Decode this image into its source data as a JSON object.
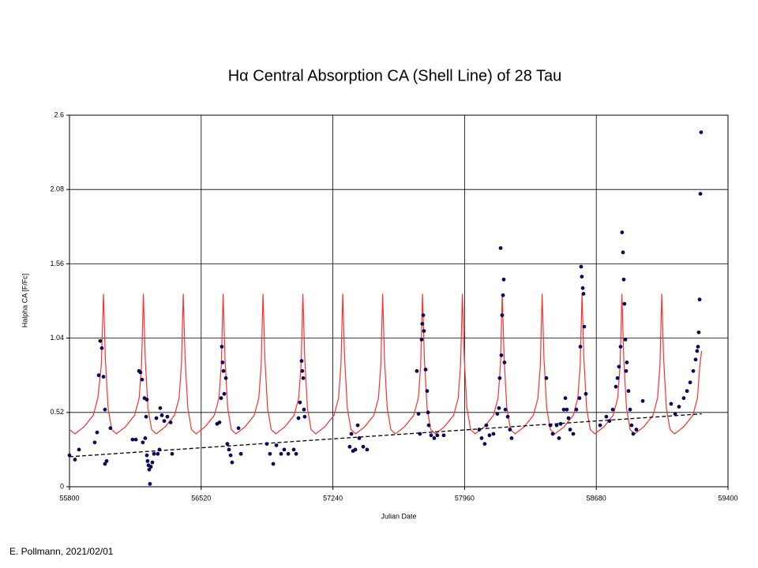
{
  "chart_data": {
    "type": "scatter",
    "title": "Hα Central Absorption CA (Shell Line) of 28 Tau",
    "x_label": "Julian Date",
    "y_label": "Halpha CA [F/Fc]",
    "footer": "E. Pollmann, 2021/02/01",
    "xlim": [
      55800,
      59400
    ],
    "xticks": [
      55800,
      56520,
      57240,
      57960,
      58680,
      59400
    ],
    "ylim": [
      0,
      2.6
    ],
    "yticks": [
      0,
      0.52,
      1.04,
      1.56,
      2.08,
      2.6
    ],
    "grid": true,
    "series": [
      {
        "style": "line",
        "color": "#ff3030",
        "x": [
          55800,
          55830,
          55880,
          55930,
          55955,
          55974,
          55986,
          55996,
          56011,
          56031,
          56056,
          56106,
          56156,
          56181,
          56194,
          56204,
          56214,
          56229,
          56249,
          56274,
          56324,
          56374,
          56399,
          56412,
          56422,
          56432,
          56447,
          56467,
          56492,
          56542,
          56592,
          56617,
          56630,
          56640,
          56650,
          56665,
          56685,
          56710,
          56760,
          56810,
          56835,
          56848,
          56858,
          56868,
          56883,
          56903,
          56928,
          56978,
          57028,
          57053,
          57066,
          57076,
          57086,
          57101,
          57121,
          57146,
          57196,
          57246,
          57271,
          57284,
          57294,
          57304,
          57319,
          57339,
          57364,
          57414,
          57464,
          57489,
          57502,
          57512,
          57522,
          57537,
          57557,
          57582,
          57632,
          57682,
          57707,
          57720,
          57730,
          57740,
          57755,
          57775,
          57800,
          57850,
          57900,
          57925,
          57938,
          57948,
          57958,
          57973,
          57993,
          58018,
          58068,
          58118,
          58143,
          58156,
          58166,
          58176,
          58191,
          58211,
          58236,
          58286,
          58336,
          58361,
          58374,
          58384,
          58394,
          58409,
          58429,
          58454,
          58504,
          58554,
          58579,
          58592,
          58602,
          58612,
          58627,
          58647,
          58672,
          58722,
          58772,
          58797,
          58810,
          58820,
          58830,
          58845,
          58865,
          58890,
          58940,
          58990,
          59015,
          59028,
          59038,
          59048,
          59063,
          59083,
          59108,
          59158,
          59208,
          59233,
          59246,
          59256
        ],
        "values": [
          0.4,
          0.37,
          0.42,
          0.5,
          0.62,
          0.85,
          1.35,
          0.9,
          0.55,
          0.4,
          0.37,
          0.42,
          0.5,
          0.62,
          0.85,
          1.35,
          0.9,
          0.55,
          0.4,
          0.37,
          0.42,
          0.5,
          0.62,
          0.85,
          1.35,
          0.9,
          0.55,
          0.4,
          0.37,
          0.42,
          0.5,
          0.62,
          0.85,
          1.35,
          0.9,
          0.55,
          0.4,
          0.37,
          0.42,
          0.5,
          0.62,
          0.85,
          1.35,
          0.9,
          0.55,
          0.4,
          0.37,
          0.42,
          0.5,
          0.62,
          0.85,
          1.35,
          0.9,
          0.55,
          0.4,
          0.37,
          0.42,
          0.5,
          0.62,
          0.85,
          1.35,
          0.9,
          0.55,
          0.4,
          0.37,
          0.42,
          0.5,
          0.62,
          0.85,
          1.35,
          0.9,
          0.55,
          0.4,
          0.37,
          0.42,
          0.5,
          0.62,
          0.85,
          1.35,
          0.9,
          0.55,
          0.4,
          0.37,
          0.42,
          0.5,
          0.62,
          0.85,
          1.35,
          0.9,
          0.55,
          0.4,
          0.37,
          0.42,
          0.5,
          0.62,
          0.85,
          1.35,
          0.9,
          0.55,
          0.4,
          0.37,
          0.42,
          0.5,
          0.62,
          0.85,
          1.35,
          0.9,
          0.55,
          0.4,
          0.37,
          0.42,
          0.5,
          0.62,
          0.85,
          1.35,
          0.9,
          0.55,
          0.4,
          0.37,
          0.42,
          0.5,
          0.62,
          0.85,
          1.35,
          0.9,
          0.55,
          0.4,
          0.37,
          0.42,
          0.5,
          0.62,
          0.85,
          1.35,
          0.9,
          0.55,
          0.4,
          0.37,
          0.42,
          0.5,
          0.62,
          0.85,
          0.95
        ]
      },
      {
        "style": "dashed",
        "color": "#000000",
        "x": [
          55800,
          59256
        ],
        "values": [
          0.21,
          0.51
        ]
      },
      {
        "style": "points",
        "color": "#0a0a5a",
        "x": [
          55800,
          55830,
          55852,
          55938,
          55951,
          55960,
          55968,
          55977,
          55986,
          55994,
          55994,
          56003,
          56024,
          56145,
          56163,
          56180,
          56188,
          56197,
          56201,
          56210,
          56214,
          56219,
          56223,
          56223,
          56227,
          56232,
          56236,
          56240,
          56245,
          56253,
          56262,
          56275,
          56283,
          56292,
          56296,
          56305,
          56318,
          56335,
          56353,
          56361,
          56607,
          56620,
          56629,
          56633,
          56637,
          56642,
          56646,
          56655,
          56663,
          56672,
          56681,
          56689,
          56724,
          56737,
          56879,
          56896,
          56914,
          56931,
          56957,
          56974,
          56996,
          57026,
          57039,
          57052,
          57060,
          57069,
          57073,
          57078,
          57082,
          57086,
          57332,
          57341,
          57350,
          57363,
          57376,
          57384,
          57406,
          57427,
          57699,
          57708,
          57716,
          57725,
          57729,
          57734,
          57738,
          57747,
          57755,
          57760,
          57764,
          57777,
          57794,
          57811,
          57846,
          58040,
          58053,
          58070,
          58079,
          58096,
          58118,
          58139,
          58148,
          58152,
          58157,
          58161,
          58165,
          58170,
          58174,
          58178,
          58183,
          58196,
          58208,
          58217,
          58407,
          58429,
          58442,
          58463,
          58476,
          58485,
          58502,
          58511,
          58519,
          58528,
          58537,
          58554,
          58571,
          58588,
          58593,
          58597,
          58601,
          58606,
          58610,
          58614,
          58623,
          58701,
          58735,
          58752,
          58770,
          58787,
          58796,
          58804,
          58813,
          58821,
          58826,
          58830,
          58834,
          58839,
          58843,
          58847,
          58856,
          58865,
          58873,
          58882,
          58899,
          58934,
          59089,
          59111,
          59132,
          59158,
          59176,
          59193,
          59210,
          59223,
          59231,
          59236,
          59240,
          59245,
          59249,
          59253
        ],
        "values": [
          0.22,
          0.19,
          0.26,
          0.31,
          0.38,
          0.78,
          1.02,
          0.97,
          0.77,
          0.54,
          0.16,
          0.18,
          0.41,
          0.33,
          0.33,
          0.81,
          0.8,
          0.75,
          0.31,
          0.62,
          0.34,
          0.49,
          0.61,
          0.22,
          0.18,
          0.15,
          0.12,
          0.02,
          0.14,
          0.17,
          0.23,
          0.48,
          0.23,
          0.26,
          0.55,
          0.5,
          0.46,
          0.49,
          0.45,
          0.23,
          0.44,
          0.45,
          0.62,
          0.98,
          0.87,
          0.81,
          0.65,
          0.76,
          0.3,
          0.26,
          0.22,
          0.17,
          0.41,
          0.23,
          0.3,
          0.23,
          0.16,
          0.29,
          0.23,
          0.26,
          0.23,
          0.26,
          0.23,
          0.48,
          0.59,
          0.88,
          0.81,
          0.76,
          0.54,
          0.49,
          0.28,
          0.37,
          0.25,
          0.26,
          0.43,
          0.34,
          0.28,
          0.26,
          0.81,
          0.51,
          0.37,
          1.03,
          1.14,
          1.2,
          1.09,
          0.82,
          0.67,
          0.52,
          0.43,
          0.36,
          0.34,
          0.36,
          0.36,
          0.4,
          0.34,
          0.3,
          0.43,
          0.36,
          0.37,
          0.51,
          0.55,
          0.76,
          1.67,
          0.92,
          1.2,
          1.34,
          1.45,
          0.87,
          0.54,
          0.49,
          0.4,
          0.34,
          0.76,
          0.43,
          0.37,
          0.43,
          0.34,
          0.44,
          0.54,
          0.62,
          0.54,
          0.48,
          0.4,
          0.37,
          0.54,
          0.62,
          0.98,
          1.54,
          1.47,
          1.39,
          1.35,
          1.12,
          0.65,
          0.43,
          0.49,
          0.46,
          0.54,
          0.7,
          0.76,
          0.84,
          0.98,
          1.78,
          1.64,
          1.45,
          1.28,
          1.03,
          0.81,
          0.87,
          0.67,
          0.54,
          0.43,
          0.37,
          0.4,
          0.6,
          0.58,
          0.51,
          0.56,
          0.62,
          0.67,
          0.73,
          0.81,
          0.89,
          0.95,
          0.98,
          1.08,
          1.31,
          2.05,
          2.48
        ]
      }
    ]
  }
}
